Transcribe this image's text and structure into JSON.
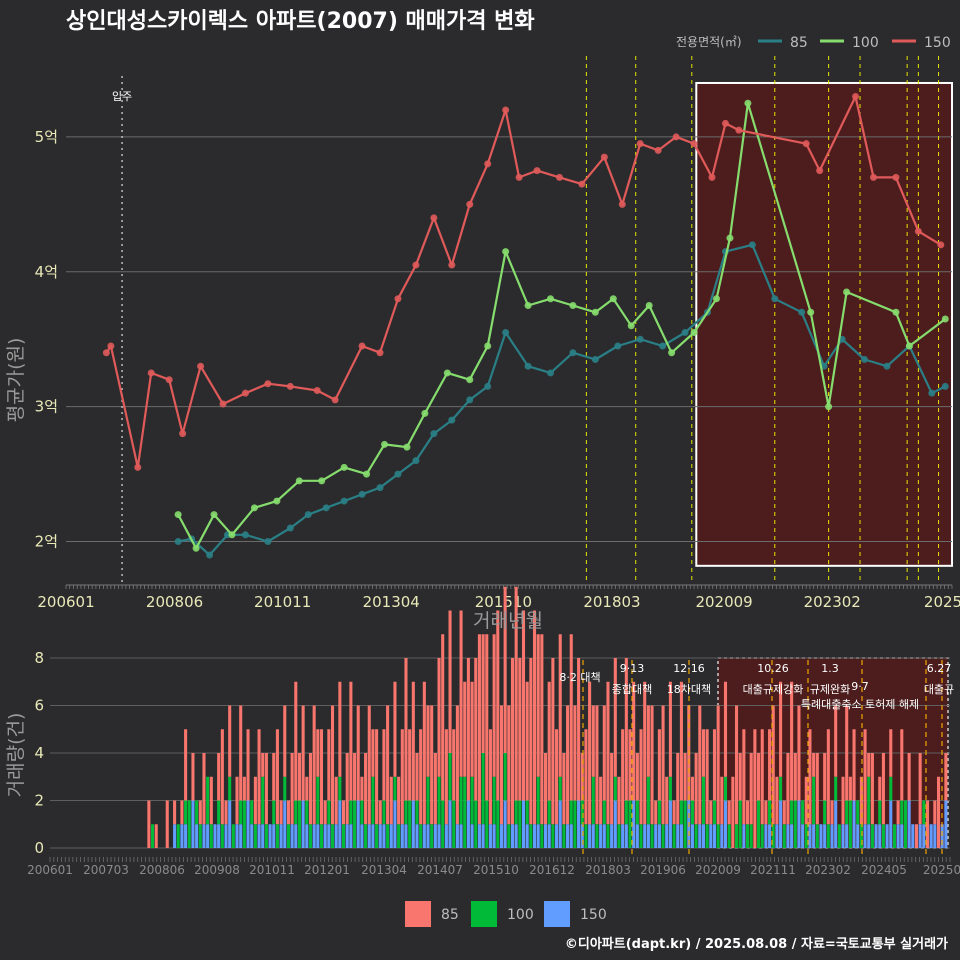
{
  "title": "상인대성스카이렉스 아파트(2007) 매매가격 변화",
  "credit": "©디아파트(dapt.kr) / 2025.08.08 / 자료=국토교통부 실거래가",
  "colors": {
    "s85": "#2a7f86",
    "s100": "#86dd6e",
    "s150": "#e05a5a",
    "bar85": "#f8766d",
    "bar100": "#00ba38",
    "bar150": "#619cff",
    "policy": "#e6e600",
    "highlight": "#5a1a1a"
  },
  "chart_data": [
    {
      "type": "line",
      "ylabel": "평균가(원)",
      "xlabel": "거래년월",
      "ylim": [
        1.7,
        5.6
      ],
      "xlim": [
        2006.0,
        2025.75
      ],
      "x_ticks": [
        "200601",
        "200806",
        "201011",
        "201304",
        "201510",
        "201803",
        "202009",
        "202302",
        "2025"
      ],
      "y_ticks": [
        "2억",
        "3억",
        "4억",
        "5억"
      ],
      "legend_title": "전용면적(㎡)",
      "legend_position": "top-right",
      "annotation": "입주",
      "series": [
        {
          "name": "85",
          "x": [
            2008.5,
            2008.8,
            2009.2,
            2009.6,
            2010.0,
            2010.5,
            2011.0,
            2011.4,
            2011.8,
            2012.2,
            2012.6,
            2013.0,
            2013.4,
            2013.8,
            2014.2,
            2014.6,
            2015.0,
            2015.4,
            2015.8,
            2016.3,
            2016.8,
            2017.3,
            2017.8,
            2018.3,
            2018.8,
            2019.3,
            2019.8,
            2020.3,
            2020.7,
            2021.3,
            2021.8,
            2022.4,
            2022.9,
            2023.3,
            2023.8,
            2024.3,
            2024.8,
            2025.3,
            2025.6
          ],
          "values": [
            2.0,
            2.02,
            1.9,
            2.05,
            2.05,
            2.0,
            2.1,
            2.2,
            2.25,
            2.3,
            2.35,
            2.4,
            2.5,
            2.6,
            2.8,
            2.9,
            3.05,
            3.15,
            3.55,
            3.3,
            3.25,
            3.4,
            3.35,
            3.45,
            3.5,
            3.45,
            3.55,
            3.7,
            4.15,
            4.2,
            3.8,
            3.7,
            3.3,
            3.5,
            3.35,
            3.3,
            3.45,
            3.1,
            3.15
          ]
        },
        {
          "name": "100",
          "x": [
            2008.5,
            2008.9,
            2009.3,
            2009.7,
            2010.2,
            2010.7,
            2011.2,
            2011.7,
            2012.2,
            2012.7,
            2013.1,
            2013.6,
            2014.0,
            2014.5,
            2015.0,
            2015.4,
            2015.8,
            2016.3,
            2016.8,
            2017.3,
            2017.8,
            2018.2,
            2018.6,
            2019.0,
            2019.5,
            2020.0,
            2020.5,
            2020.8,
            2021.2,
            2022.6,
            2023.0,
            2023.4,
            2024.5,
            2024.8,
            2025.6
          ],
          "values": [
            2.2,
            1.95,
            2.2,
            2.05,
            2.25,
            2.3,
            2.45,
            2.45,
            2.55,
            2.5,
            2.72,
            2.7,
            2.95,
            3.25,
            3.2,
            3.45,
            4.15,
            3.75,
            3.8,
            3.75,
            3.7,
            3.8,
            3.6,
            3.75,
            3.4,
            3.55,
            3.8,
            4.25,
            5.25,
            3.7,
            3.0,
            3.85,
            3.7,
            3.45,
            3.65
          ]
        },
        {
          "name": "150",
          "x": [
            2006.9,
            2007.0,
            2007.6,
            2007.9,
            2008.3,
            2008.6,
            2009.0,
            2009.5,
            2010.0,
            2010.5,
            2011.0,
            2011.6,
            2012.0,
            2012.6,
            2013.0,
            2013.4,
            2013.8,
            2014.2,
            2014.6,
            2015.0,
            2015.4,
            2015.8,
            2016.1,
            2016.5,
            2017.0,
            2017.5,
            2018.0,
            2018.4,
            2018.8,
            2019.2,
            2019.6,
            2020.0,
            2020.4,
            2020.7,
            2021.0,
            2022.5,
            2022.8,
            2023.6,
            2024.0,
            2024.5,
            2025.0,
            2025.5
          ],
          "values": [
            3.4,
            3.45,
            2.55,
            3.25,
            3.2,
            2.8,
            3.3,
            3.02,
            3.1,
            3.17,
            3.15,
            3.12,
            3.05,
            3.45,
            3.4,
            3.8,
            4.05,
            4.4,
            4.05,
            4.5,
            4.8,
            5.2,
            4.7,
            4.75,
            4.7,
            4.65,
            4.85,
            4.5,
            4.95,
            4.9,
            5.0,
            4.95,
            4.7,
            5.1,
            5.05,
            4.95,
            4.75,
            5.3,
            4.7,
            4.7,
            4.3,
            4.2
          ]
        }
      ]
    },
    {
      "type": "bar",
      "ylabel": "거래량(건)",
      "ylim": [
        0,
        8
      ],
      "y_ticks": [
        "0",
        "2",
        "4",
        "6",
        "8"
      ],
      "x_ticks": [
        "200601",
        "200703",
        "200806",
        "200908",
        "201011",
        "201201",
        "201304",
        "201407",
        "201510",
        "201612",
        "201803",
        "201906",
        "202009",
        "202111",
        "202302",
        "202405",
        "20250"
      ],
      "series": [
        {
          "name": "85",
          "values": [
            0,
            1,
            2,
            2,
            3,
            3,
            3,
            4,
            5,
            6,
            7,
            5,
            4,
            4,
            3,
            3,
            3,
            3,
            2,
            2,
            1,
            1
          ]
        },
        {
          "name": "100",
          "values": [
            0,
            1,
            1,
            1,
            1,
            1,
            1,
            1,
            2,
            2,
            1,
            1,
            1,
            1,
            1,
            1,
            1,
            1,
            1,
            1,
            1,
            0
          ]
        },
        {
          "name": "150",
          "values": [
            0,
            1,
            1,
            1,
            1,
            1,
            1,
            1,
            1,
            1,
            1,
            1,
            1,
            1,
            1,
            1,
            0,
            1,
            1,
            1,
            1,
            1
          ]
        }
      ],
      "policy_labels": [
        {
          "date": "8·2",
          "label": "8·2 대책"
        },
        {
          "date": "9·13",
          "label": "종합대책"
        },
        {
          "date": "12·16",
          "label": "18차대책"
        },
        {
          "date": "10.26",
          "label": "대출규제강화"
        },
        {
          "date": "1.3",
          "label": "규제완화"
        },
        {
          "date": "9·7",
          "label": "특례대출축소 토허제 해제"
        },
        {
          "date": "6.27",
          "label": "대출규"
        }
      ]
    }
  ]
}
